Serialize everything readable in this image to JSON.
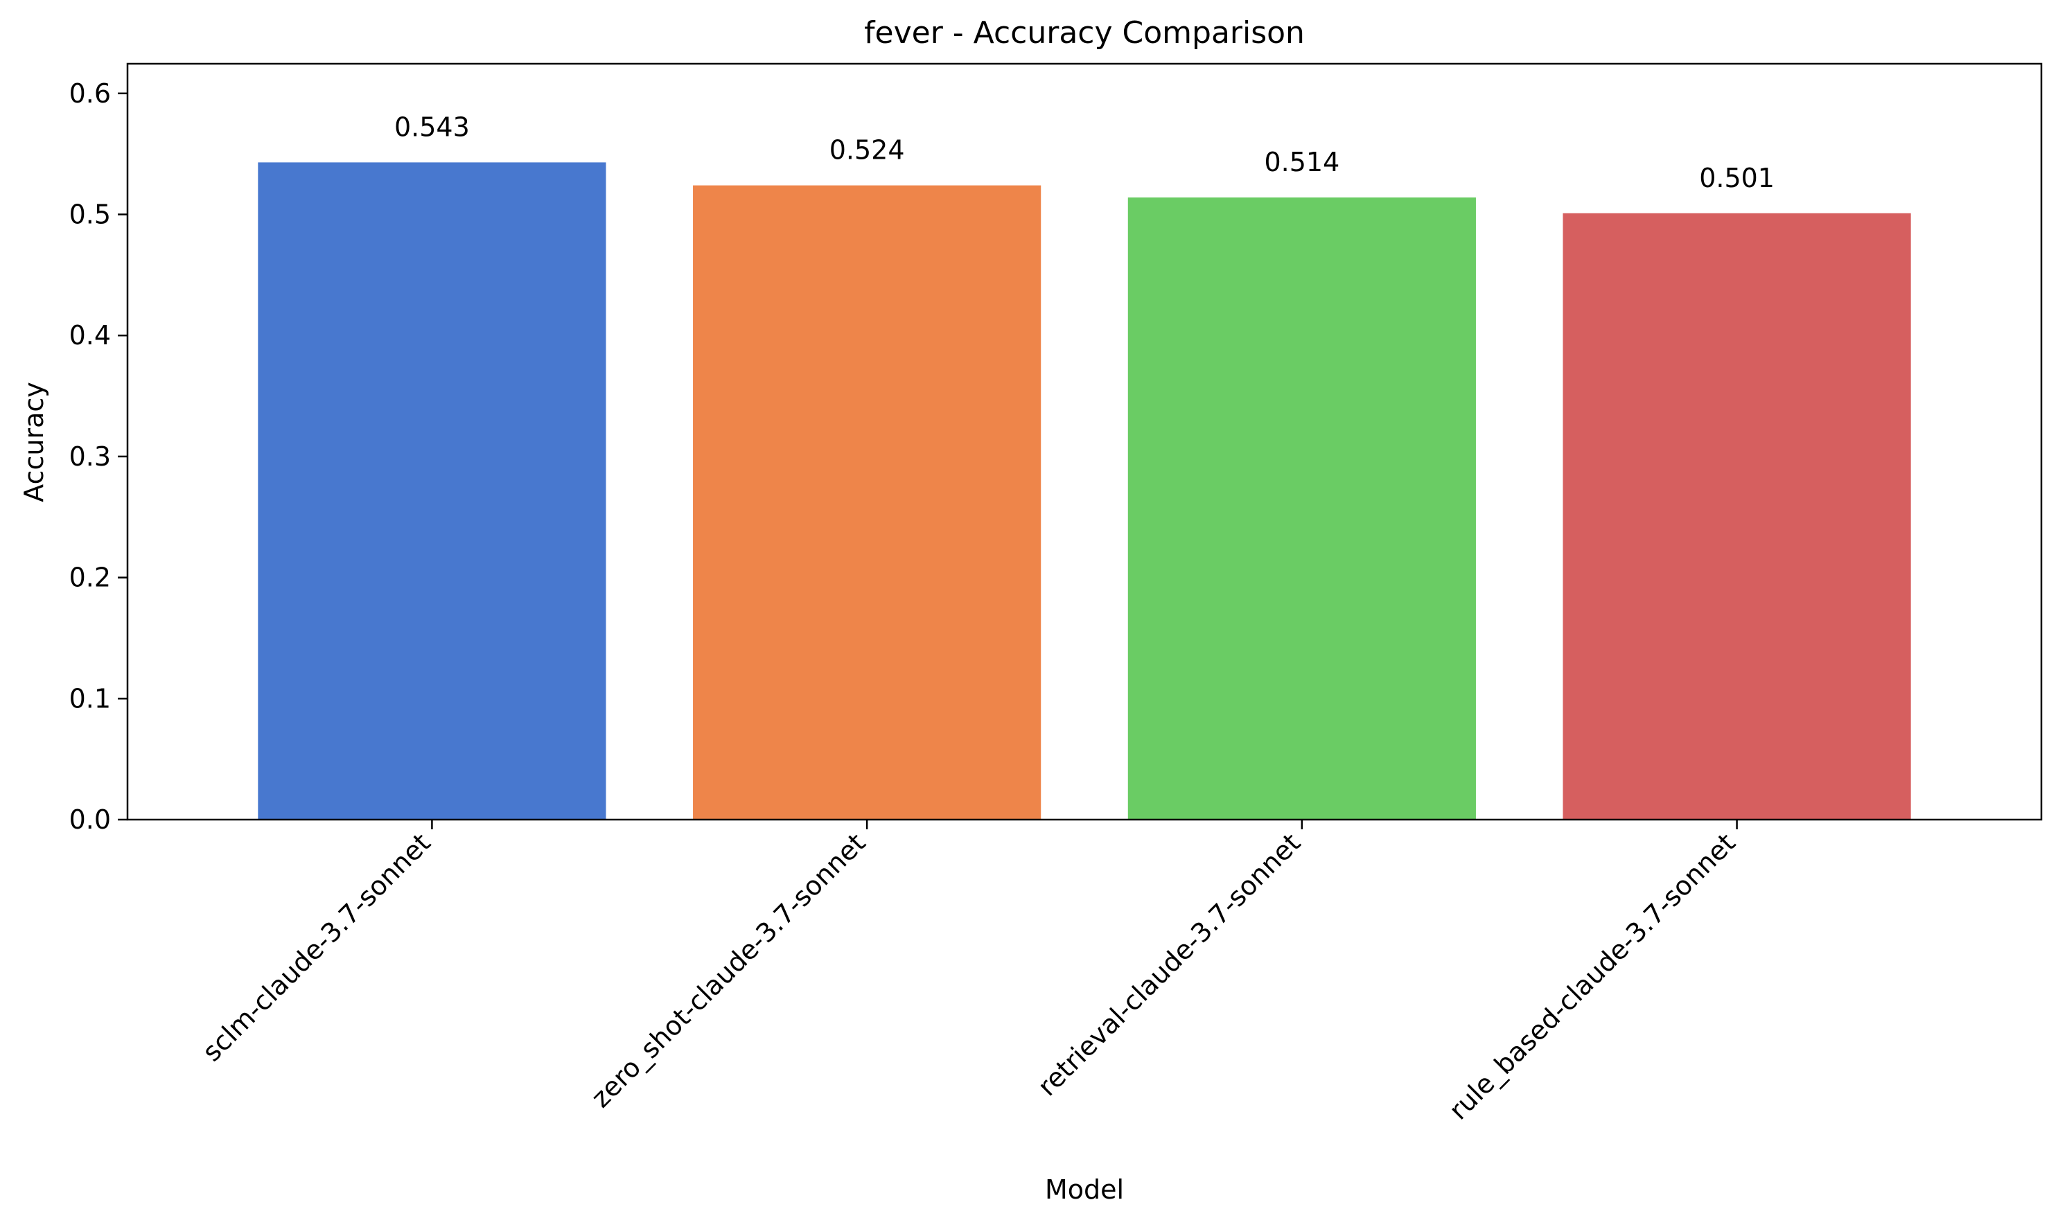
{
  "chart_data": {
    "type": "bar",
    "title": "fever - Accuracy Comparison",
    "xlabel": "Model",
    "ylabel": "Accuracy",
    "categories": [
      "sclm-claude-3.7-sonnet",
      "zero_shot-claude-3.7-sonnet",
      "retrieval-claude-3.7-sonnet",
      "rule_based-claude-3.7-sonnet"
    ],
    "values": [
      0.543,
      0.524,
      0.514,
      0.501
    ],
    "value_labels": [
      "0.543",
      "0.524",
      "0.514",
      "0.501"
    ],
    "colors": [
      "#4878cf",
      "#ee854a",
      "#6acc64",
      "#d65f5f"
    ],
    "ylim": [
      0,
      0.6245
    ],
    "yticks": [
      0.0,
      0.1,
      0.2,
      0.3,
      0.4,
      0.5,
      0.6
    ],
    "ytick_labels": [
      "0.0",
      "0.1",
      "0.2",
      "0.3",
      "0.4",
      "0.5",
      "0.6"
    ],
    "grid": false,
    "legend": "none"
  }
}
